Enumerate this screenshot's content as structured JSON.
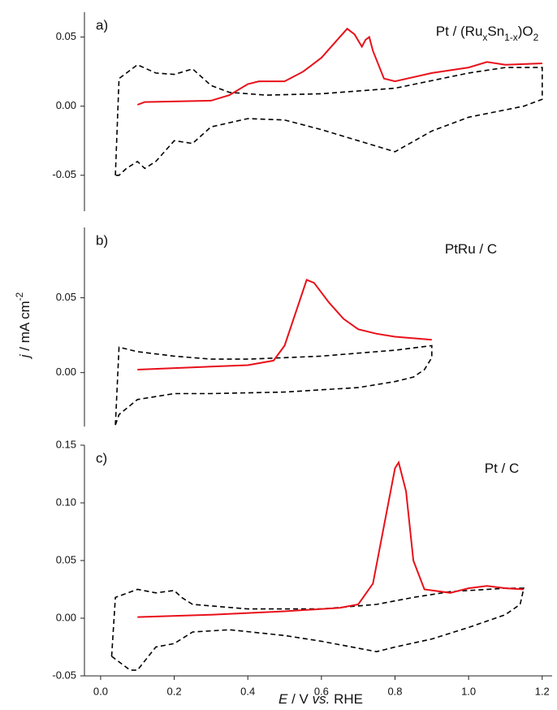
{
  "chart_data": [
    {
      "type": "line",
      "panel_label": "a)",
      "label_parts": [
        {
          "text": "Pt / (Ru"
        },
        {
          "text": "x",
          "sub": true
        },
        {
          "text": "Sn"
        },
        {
          "text": "1-x",
          "sub": true
        },
        {
          "text": ")O"
        },
        {
          "text": "2",
          "sub": true
        }
      ],
      "xlim": [
        -0.044,
        1.227
      ],
      "ylim": [
        -0.076,
        0.068
      ],
      "yticks": [
        0.05,
        {
          "value": 0,
          "label": "0.00"
        },
        -0.05
      ],
      "series": [
        {
          "color": "#000000",
          "dash": true,
          "x": [
            0.04,
            0.05,
            0.1,
            0.15,
            0.2,
            0.25,
            0.3,
            0.35,
            0.45,
            0.6,
            0.8,
            1.0,
            1.1,
            1.2,
            1.2,
            1.15,
            1.0,
            0.9,
            0.8,
            0.7,
            0.6,
            0.5,
            0.4,
            0.3,
            0.25,
            0.2,
            0.15,
            0.12,
            0.1,
            0.07,
            0.05,
            0.04
          ],
          "values": [
            -0.05,
            0.02,
            0.03,
            0.024,
            0.023,
            0.027,
            0.015,
            0.01,
            0.008,
            0.009,
            0.013,
            0.024,
            0.028,
            0.028,
            0.005,
            0.0,
            -0.008,
            -0.018,
            -0.033,
            -0.025,
            -0.017,
            -0.01,
            -0.009,
            -0.015,
            -0.027,
            -0.025,
            -0.04,
            -0.045,
            -0.04,
            -0.045,
            -0.05,
            -0.05
          ]
        },
        {
          "color": "#e8101a",
          "dash": false,
          "x": [
            0.1,
            0.12,
            0.3,
            0.35,
            0.4,
            0.43,
            0.5,
            0.55,
            0.6,
            0.65,
            0.67,
            0.69,
            0.71,
            0.72,
            0.73,
            0.74,
            0.77,
            0.8,
            0.9,
            1.0,
            1.05,
            1.1,
            1.2
          ],
          "values": [
            0.001,
            0.003,
            0.004,
            0.008,
            0.016,
            0.018,
            0.018,
            0.025,
            0.035,
            0.05,
            0.056,
            0.052,
            0.043,
            0.048,
            0.05,
            0.04,
            0.02,
            0.018,
            0.024,
            0.028,
            0.032,
            0.03,
            0.031
          ]
        }
      ]
    },
    {
      "type": "line",
      "panel_label": "b)",
      "label_parts": [
        {
          "text": "PtRu / C"
        }
      ],
      "ylabel_parts": [
        {
          "text": "j",
          "italic": true
        },
        {
          "text": " / mA cm"
        },
        {
          "text": "-2",
          "sup": true
        }
      ],
      "xlim": [
        -0.044,
        1.227
      ],
      "ylim": [
        -0.036,
        0.097
      ],
      "yticks": [
        0.05,
        {
          "value": 0,
          "label": "0.00"
        }
      ],
      "series": [
        {
          "color": "#000000",
          "dash": true,
          "x": [
            0.04,
            0.05,
            0.1,
            0.2,
            0.3,
            0.4,
            0.5,
            0.6,
            0.7,
            0.8,
            0.9,
            0.9,
            0.88,
            0.85,
            0.8,
            0.7,
            0.5,
            0.3,
            0.2,
            0.1,
            0.05,
            0.04
          ],
          "values": [
            -0.035,
            0.017,
            0.014,
            0.011,
            0.009,
            0.009,
            0.01,
            0.011,
            0.013,
            0.015,
            0.018,
            0.01,
            0.002,
            -0.003,
            -0.006,
            -0.01,
            -0.013,
            -0.014,
            -0.014,
            -0.018,
            -0.028,
            -0.035
          ]
        },
        {
          "color": "#e8101a",
          "dash": false,
          "x": [
            0.1,
            0.3,
            0.4,
            0.47,
            0.5,
            0.53,
            0.56,
            0.58,
            0.62,
            0.66,
            0.7,
            0.75,
            0.8,
            0.9
          ],
          "values": [
            0.002,
            0.004,
            0.005,
            0.008,
            0.018,
            0.04,
            0.062,
            0.06,
            0.047,
            0.036,
            0.029,
            0.026,
            0.024,
            0.022
          ]
        }
      ]
    },
    {
      "type": "line",
      "panel_label": "c)",
      "label_parts": [
        {
          "text": "Pt / C"
        }
      ],
      "xlabel_parts": [
        {
          "text": "E",
          "italic": true
        },
        {
          "text": " / V "
        },
        {
          "text": "vs.",
          "italic": true
        },
        {
          "text": " RHE"
        }
      ],
      "xlim": [
        -0.044,
        1.227
      ],
      "ylim": [
        -0.05,
        0.15
      ],
      "yticks": [
        0.15,
        {
          "value": 0.1,
          "label": "0.10"
        },
        0.05,
        {
          "value": 0,
          "label": "0.00"
        },
        -0.05
      ],
      "xticks": [
        {
          "value": 0,
          "label": "0.0"
        },
        0.2,
        0.4,
        0.6,
        0.8,
        {
          "value": 1,
          "label": "1.0"
        },
        1.2
      ],
      "series": [
        {
          "color": "#000000",
          "dash": true,
          "x": [
            0.03,
            0.04,
            0.1,
            0.15,
            0.2,
            0.22,
            0.25,
            0.4,
            0.6,
            0.75,
            0.85,
            0.95,
            1.1,
            1.15,
            1.14,
            1.1,
            1.0,
            0.9,
            0.8,
            0.75,
            0.6,
            0.5,
            0.35,
            0.25,
            0.2,
            0.15,
            0.1,
            0.08,
            0.03
          ],
          "values": [
            -0.033,
            0.018,
            0.025,
            0.022,
            0.024,
            0.018,
            0.012,
            0.008,
            0.008,
            0.012,
            0.018,
            0.023,
            0.026,
            0.026,
            0.012,
            0.003,
            -0.008,
            -0.018,
            -0.025,
            -0.029,
            -0.02,
            -0.015,
            -0.01,
            -0.012,
            -0.022,
            -0.025,
            -0.045,
            -0.045,
            -0.033
          ]
        },
        {
          "color": "#e8101a",
          "dash": false,
          "x": [
            0.1,
            0.3,
            0.5,
            0.65,
            0.7,
            0.74,
            0.77,
            0.8,
            0.81,
            0.83,
            0.85,
            0.88,
            0.95,
            1.0,
            1.05,
            1.1,
            1.15
          ],
          "values": [
            0.001,
            0.003,
            0.006,
            0.009,
            0.012,
            0.03,
            0.08,
            0.13,
            0.135,
            0.11,
            0.05,
            0.025,
            0.022,
            0.026,
            0.028,
            0.026,
            0.025
          ]
        }
      ]
    }
  ]
}
